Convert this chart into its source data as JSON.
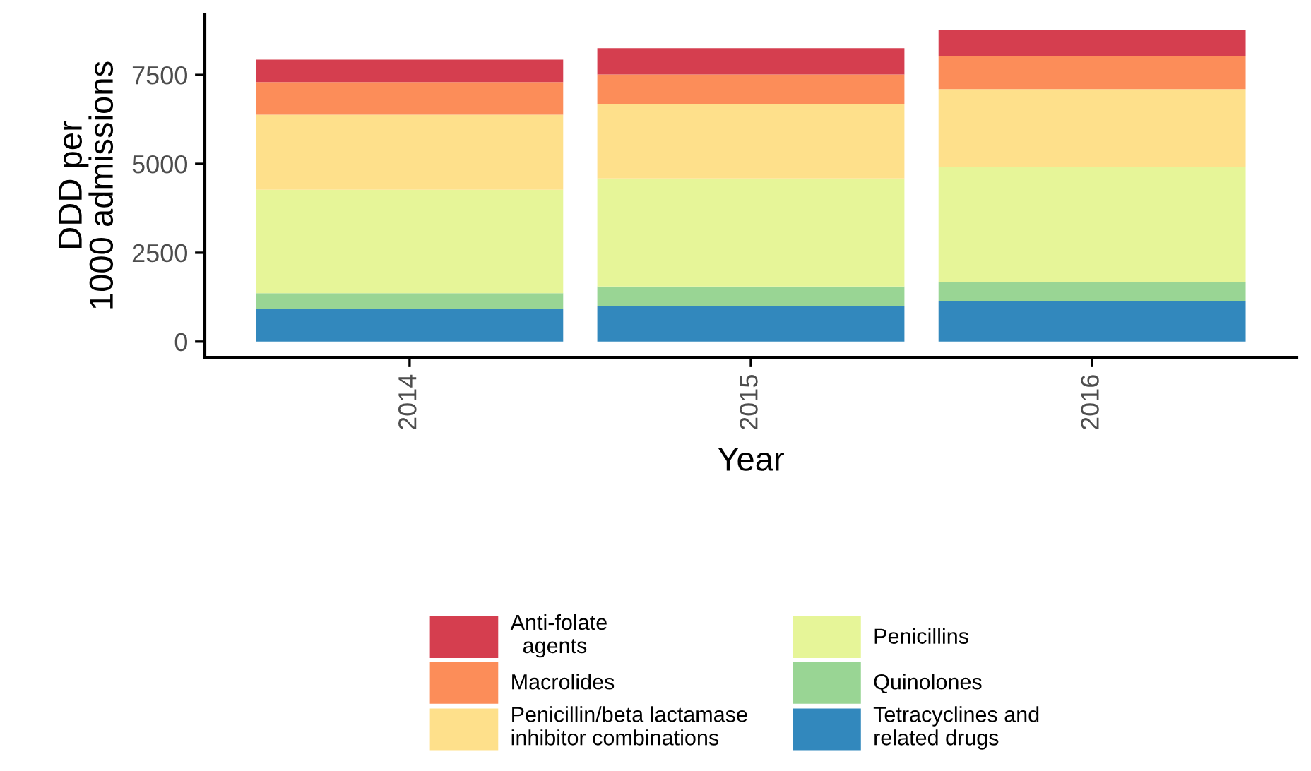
{
  "chart_data": {
    "type": "bar",
    "stacked": true,
    "xlabel": "Year",
    "ylabel": "DDD per\n1000 admissions",
    "categories": [
      "2014",
      "2015",
      "2016"
    ],
    "series": [
      {
        "name": "Tetracyclines and\nrelated drugs",
        "color": "#3288bd",
        "values": [
          920,
          1010,
          1130
        ]
      },
      {
        "name": "Quinolones",
        "color": "#99d594",
        "values": [
          440,
          540,
          540
        ]
      },
      {
        "name": "Penicillins",
        "color": "#e6f598",
        "values": [
          2910,
          3040,
          3240
        ]
      },
      {
        "name": "Penicillin/beta lactamase\ninhibitor combinations",
        "color": "#fee08b",
        "values": [
          2110,
          2090,
          2190
        ]
      },
      {
        "name": "Macrolides",
        "color": "#fc8d59",
        "values": [
          920,
          830,
          930
        ]
      },
      {
        "name": "Anti-folate\n  agents",
        "color": "#d53e4f",
        "values": [
          630,
          740,
          740
        ]
      }
    ],
    "ylim": [
      -440,
      9210
    ],
    "yticks": [
      0,
      2500,
      5000,
      7500
    ],
    "grid": false,
    "legend": "bottom"
  }
}
